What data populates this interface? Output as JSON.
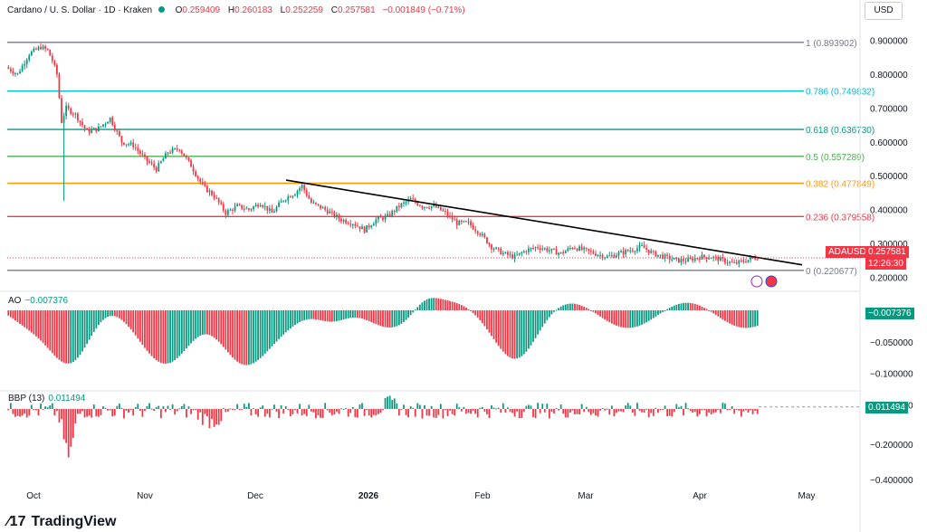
{
  "header": {
    "symbol": "Cardano / U. S. Dollar · 1D · Kraken",
    "o_label": "O",
    "o_value": "0.259409",
    "h_label": "H",
    "h_value": "0.260183",
    "l_label": "L",
    "l_value": "0.252259",
    "c_label": "C",
    "c_value": "0.257581",
    "change": "−0.001849 (−0.71%)"
  },
  "currency_button": "USD",
  "price_axis": [
    "0.900000",
    "0.800000",
    "0.700000",
    "0.600000",
    "0.500000",
    "0.400000",
    "0.300000",
    "0.200000"
  ],
  "fib_levels": [
    {
      "label": "1 (0.893902)",
      "price": 0.893902,
      "color": "#787b86"
    },
    {
      "label": "0.786 (0.749832)",
      "price": 0.749832,
      "color": "#00bcd4"
    },
    {
      "label": "0.618 (0.636730)",
      "price": 0.63673,
      "color": "#089981"
    },
    {
      "label": "0.5 (0.557289)",
      "price": 0.557289,
      "color": "#4caf50"
    },
    {
      "label": "0.382 (0.477849)",
      "price": 0.477849,
      "color": "#ff9800"
    },
    {
      "label": "0.236 (0.379558)",
      "price": 0.379558,
      "color": "#f23645"
    },
    {
      "label": "0 (0.220677)",
      "price": 0.220677,
      "color": "#787b86"
    }
  ],
  "price_badge": {
    "symbol": "ADAUSD",
    "price": "0.257581",
    "countdown": "12:26:30",
    "color": "#f23645"
  },
  "time_axis": [
    {
      "label": "Oct",
      "bold": false
    },
    {
      "label": "Nov",
      "bold": false
    },
    {
      "label": "Dec",
      "bold": false
    },
    {
      "label": "2026",
      "bold": true
    },
    {
      "label": "Feb",
      "bold": false
    },
    {
      "label": "Mar",
      "bold": false
    },
    {
      "label": "Apr",
      "bold": false
    },
    {
      "label": "May",
      "bold": false
    }
  ],
  "ao": {
    "name": "AO",
    "value": "−0.007376",
    "axis": [
      "−0.050000",
      "−0.100000",
      "−0.150000"
    ],
    "color_up": "#089981",
    "color_down": "#f23645"
  },
  "bbp": {
    "name": "BBP (13)",
    "value": "0.011494",
    "axis": [
      "−0.200000",
      "−0.400000"
    ]
  },
  "brand": "TradingView",
  "chart_data": {
    "type": "candlestick",
    "title": "Cardano / U. S. Dollar · 1D · Kraken",
    "ylim": [
      0.2,
      0.92
    ],
    "trendline": [
      [
        0.487,
        0.237
      ]
    ],
    "candles": []
  }
}
